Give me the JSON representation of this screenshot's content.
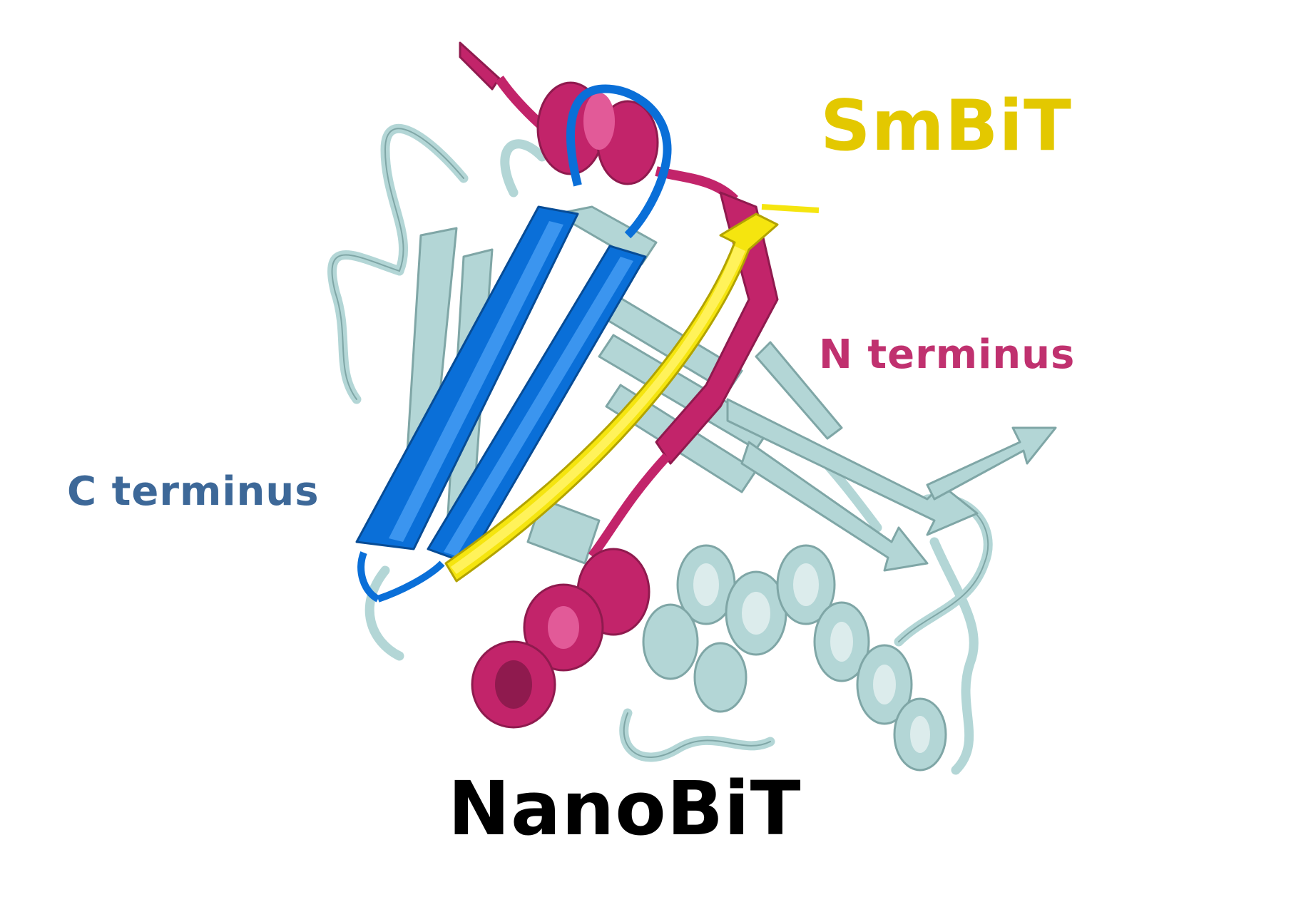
{
  "labels": {
    "smbit": "SmBiT",
    "n_terminus": "N terminus",
    "c_terminus": "C terminus",
    "nanobit": "NanoBiT"
  },
  "colors": {
    "background": "#ffffff",
    "smbit": "#e3c800",
    "smbit_strand": "#f5e50f",
    "n_terminus": "#c0316f",
    "n_terminus_ribbon": "#c2246a",
    "c_terminus": "#3d6898",
    "c_terminus_ribbon": "#0a6fd8",
    "core_protein": "#b3d6d6",
    "core_protein_outline": "#7fa6a6",
    "nanobit": "#000000"
  },
  "icons": [
    "protein-cartoon"
  ]
}
